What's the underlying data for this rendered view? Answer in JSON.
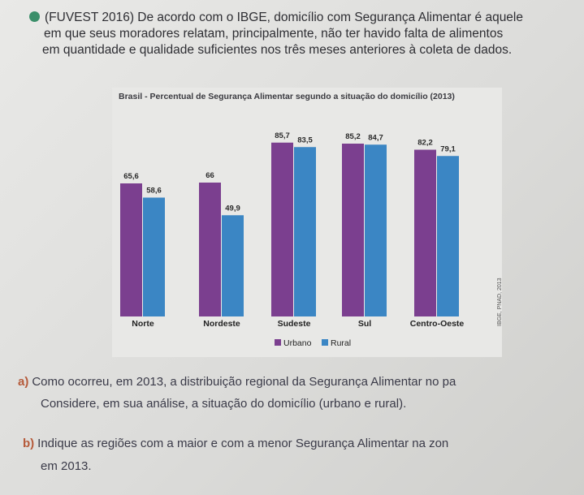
{
  "intro": {
    "line1": "(FUVEST 2016) De acordo com o IBGE, domicílio com Segurança Alimentar é aquele",
    "line2": "em que seus moradores relatam, principalmente, não ter havido falta de alimentos",
    "line3": "em quantidade e qualidade suficientes nos três meses anteriores à coleta de dados."
  },
  "chart_data": {
    "type": "bar",
    "title": "Brasil - Percentual de Segurança Alimentar segundo a situação do domicílio (2013)",
    "categories": [
      "Norte",
      "Nordeste",
      "Sudeste",
      "Sul",
      "Centro-Oeste"
    ],
    "series": [
      {
        "name": "Urbano",
        "values": [
          65.6,
          66,
          85.7,
          85.2,
          82.2
        ],
        "labels": [
          "65,6",
          "66",
          "85,7",
          "85,2",
          "82,2"
        ],
        "color": "#7b3f8f"
      },
      {
        "name": "Rural",
        "values": [
          58.6,
          49.9,
          83.5,
          84.7,
          79.1
        ],
        "labels": [
          "58,6",
          "49,9",
          "83,5",
          "84,7",
          "79,1"
        ],
        "color": "#3b86c4"
      }
    ],
    "ylim": [
      0,
      100
    ],
    "legend": "bottom-center",
    "source": "IBGE, PNAD, 2013"
  },
  "questions": {
    "a_label": "a)",
    "a_line1": "Como ocorreu, em 2013, a distribuição regional da Segurança Alimentar no pa",
    "a_line2": "Considere, em sua análise, a situação do domicílio (urbano e rural).",
    "b_label": "b)",
    "b_line1": "Indique as regiões com a maior e com a menor Segurança Alimentar na zon",
    "b_line2": "em 2013."
  }
}
